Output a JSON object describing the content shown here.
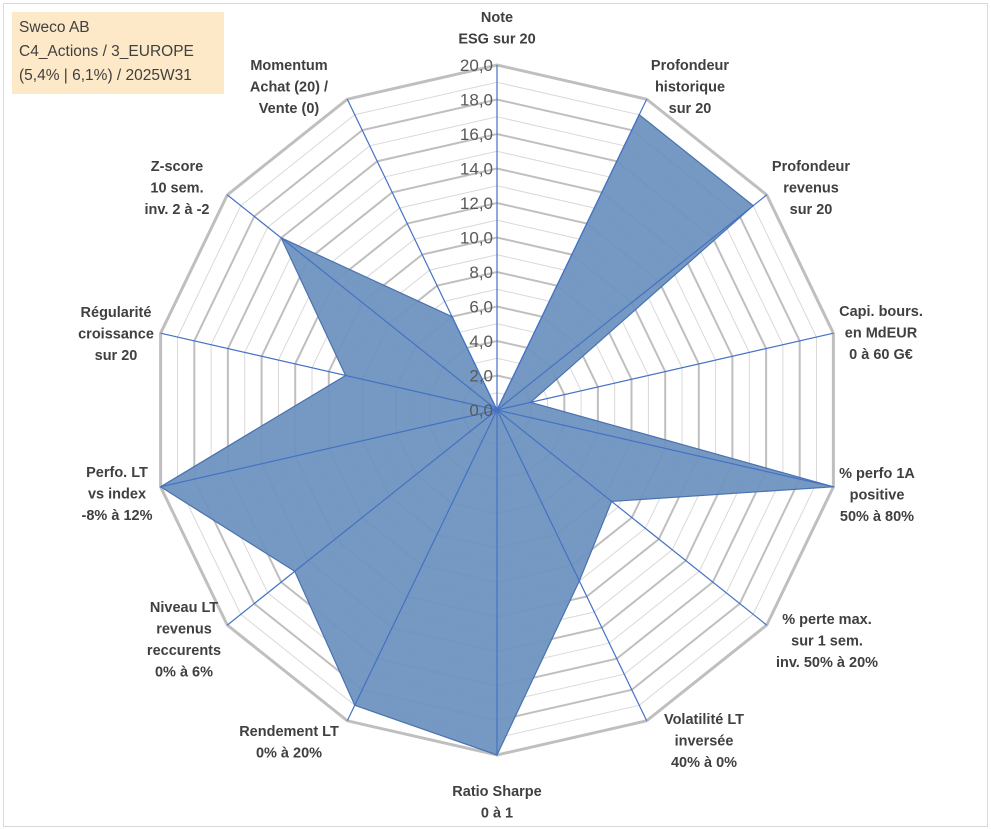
{
  "infobox": {
    "line1": "Sweco AB",
    "line2": "C4_Actions / 3_EUROPE",
    "line3": "(5,4% | 6,1%) / 2025W31"
  },
  "colors": {
    "area_fill": "#6e93bf",
    "area_stroke": "#4a72b0",
    "spoke": "#4472c4",
    "grid_major": "#bfbfbf",
    "grid_minor": "#d9d9d9",
    "infobox_bg": "#fde9c8"
  },
  "chart_data": {
    "type": "radar",
    "title": "",
    "rmin": 0,
    "rmax": 20,
    "tick_values": [
      0,
      2,
      4,
      6,
      8,
      10,
      12,
      14,
      16,
      18,
      20
    ],
    "tick_labels": [
      "0,0",
      "2,0",
      "4,0",
      "6,0",
      "8,0",
      "10,0",
      "12,0",
      "14,0",
      "16,0",
      "18,0",
      "20,0"
    ],
    "categories": [
      [
        "Note",
        "ESG sur 20"
      ],
      [
        "Profondeur",
        "historique",
        "sur 20"
      ],
      [
        "Profondeur",
        "revenus",
        "sur 20"
      ],
      [
        "Capi. bours.",
        "en MdEUR",
        "0 à 60 G€"
      ],
      [
        "% perfo 1A",
        "positive",
        "50% à 80%"
      ],
      [
        "% perte max.",
        "sur 1 sem.",
        "inv. 50% à 20%"
      ],
      [
        "Volatilité LT",
        "inversée",
        "40% à 0%"
      ],
      [
        "Ratio Sharpe",
        "0 à 1"
      ],
      [
        "Rendement LT",
        "0% à 20%"
      ],
      [
        "Niveau LT",
        "revenus",
        "reccurents",
        "0% à 6%"
      ],
      [
        "Perfo. LT",
        "vs index",
        "-8% à 12%"
      ],
      [
        "Régularité",
        "croissance",
        "sur 20"
      ],
      [
        "Z-score",
        "10 sem.",
        "inv. 2 à -2"
      ],
      [
        "Momentum",
        "Achat (20) /",
        "Vente (0)"
      ]
    ],
    "series": [
      {
        "values": [
          0.0,
          19.0,
          19.0,
          2.0,
          20.0,
          8.5,
          11.0,
          20.0,
          19.0,
          15.0,
          20.0,
          9.0,
          16.0,
          6.0
        ]
      }
    ],
    "grid": true,
    "legend": "none"
  }
}
